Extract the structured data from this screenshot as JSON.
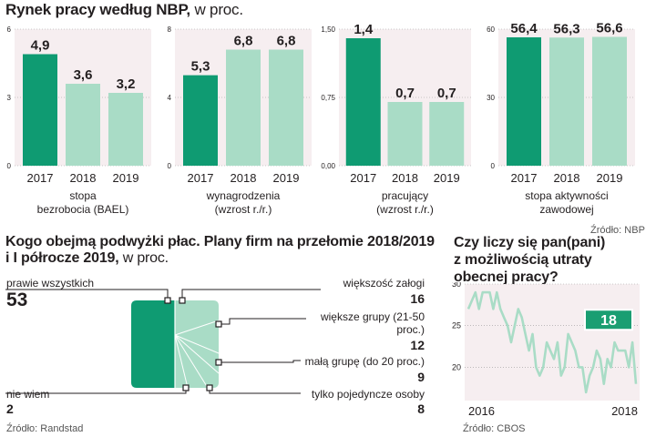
{
  "colors": {
    "dark": "#0f9b72",
    "light": "#a9dcc6",
    "panel_bg": "#f6eef0",
    "grid": "#999999",
    "accent": "#1a9e72"
  },
  "top": {
    "title": "Rynek pracy według NBP,",
    "title_suffix": " w proc.",
    "source": "Źródło: NBP"
  },
  "chart_data": [
    {
      "type": "bar",
      "title": "stopa bezrobocia (BAEL)",
      "caption_lines": [
        "stopa",
        "bezrobocia (BAEL)"
      ],
      "categories": [
        "2017",
        "2018",
        "2019"
      ],
      "values": [
        4.9,
        3.6,
        3.2
      ],
      "labels": [
        "4,9",
        "3,6",
        "3,2"
      ],
      "ticks": [
        "6",
        "3",
        "0"
      ],
      "tick_values": [
        6,
        3,
        0
      ],
      "ylim": [
        0,
        6
      ]
    },
    {
      "type": "bar",
      "title": "wynagrodzenia (wzrost r./r.)",
      "caption_lines": [
        "wynagrodzenia",
        "(wzrost r./r.)"
      ],
      "categories": [
        "2017",
        "2018",
        "2019"
      ],
      "values": [
        5.3,
        6.8,
        6.8
      ],
      "labels": [
        "5,3",
        "6,8",
        "6,8"
      ],
      "ticks": [
        "8",
        "4",
        "0"
      ],
      "tick_values": [
        8,
        4,
        0
      ],
      "ylim": [
        0,
        8
      ]
    },
    {
      "type": "bar",
      "title": "pracujący (wzrost r./r.)",
      "caption_lines": [
        "pracujący",
        "(wzrost r./r.)"
      ],
      "categories": [
        "2017",
        "2018",
        "2019"
      ],
      "values": [
        1.4,
        0.7,
        0.7
      ],
      "labels": [
        "1,4",
        "0,7",
        "0,7"
      ],
      "ticks": [
        "1,50",
        "0,75",
        "0,00"
      ],
      "tick_values": [
        1.5,
        0.75,
        0
      ],
      "ylim": [
        0,
        1.5
      ]
    },
    {
      "type": "bar",
      "title": "stopa aktywności zawodowej",
      "caption_lines": [
        "stopa aktywności",
        "zawodowej"
      ],
      "categories": [
        "2017",
        "2018",
        "2019"
      ],
      "values": [
        56.4,
        56.3,
        56.6
      ],
      "labels": [
        "56,4",
        "56,3",
        "56,6"
      ],
      "ticks": [
        "60",
        "30",
        "0"
      ],
      "tick_values": [
        60,
        30,
        0
      ],
      "ylim": [
        0,
        60
      ]
    },
    {
      "type": "pie",
      "title": "Kogo obejmą podwyżki płac. Plany firm na przełomie 2018/2019 i I półrocze 2019",
      "slices": [
        {
          "name": "prawie wszystkich",
          "value": 53
        },
        {
          "name": "większość załogi",
          "value": 16
        },
        {
          "name": "większe grupy (21-50 proc.)",
          "value": 12
        },
        {
          "name": "małą grupę (do 20 proc.)",
          "value": 9
        },
        {
          "name": "tylko pojedyncze osoby",
          "value": 8
        },
        {
          "name": "nie wiem",
          "value": 2
        }
      ]
    },
    {
      "type": "line",
      "title": "Czy liczy się pan(pani) z możliwością utraty obecnej pracy?",
      "x_start_label": "2016",
      "x_end_label": "2018",
      "y": [
        27,
        28,
        29,
        27,
        29,
        29,
        29,
        27,
        29,
        27,
        26,
        25,
        23,
        25,
        27,
        26,
        24,
        22,
        24,
        20,
        19,
        20,
        23,
        22,
        21,
        23,
        19,
        20,
        24,
        23,
        22,
        20,
        20,
        17,
        19,
        20,
        22,
        21,
        18,
        21,
        20,
        23,
        22,
        22,
        22,
        20,
        23,
        18
      ],
      "last_value": "18",
      "ticks": [
        "30",
        "25",
        "20"
      ],
      "tick_values": [
        30,
        25,
        20
      ],
      "ylim": [
        16,
        30
      ]
    }
  ],
  "pie_section": {
    "title": "Kogo obejmą podwyżki płac. Plany firm na przełomie 2018/2019",
    "title_line2": "i I półrocze 2019,",
    "title_suffix": " w proc.",
    "source": "Źródło: Randstad",
    "items": [
      {
        "label": "prawie wszystkich",
        "value": "53"
      },
      {
        "label": "większość załogi",
        "value": "16"
      },
      {
        "label_line1": "większe grupy (21-50",
        "label_line2": "proc.)",
        "value": "12"
      },
      {
        "label": "małą grupę (do 20 proc.)",
        "value": "9"
      },
      {
        "label": "tylko pojedyncze osoby",
        "value": "8"
      },
      {
        "label": "nie wiem",
        "value": "2"
      }
    ]
  },
  "line_section": {
    "title_line1": "Czy liczy się pan(pani)",
    "title_line2": "z możliwością utraty",
    "title_line3": "obecnej pracy?",
    "source": "Źródło: CBOS"
  }
}
